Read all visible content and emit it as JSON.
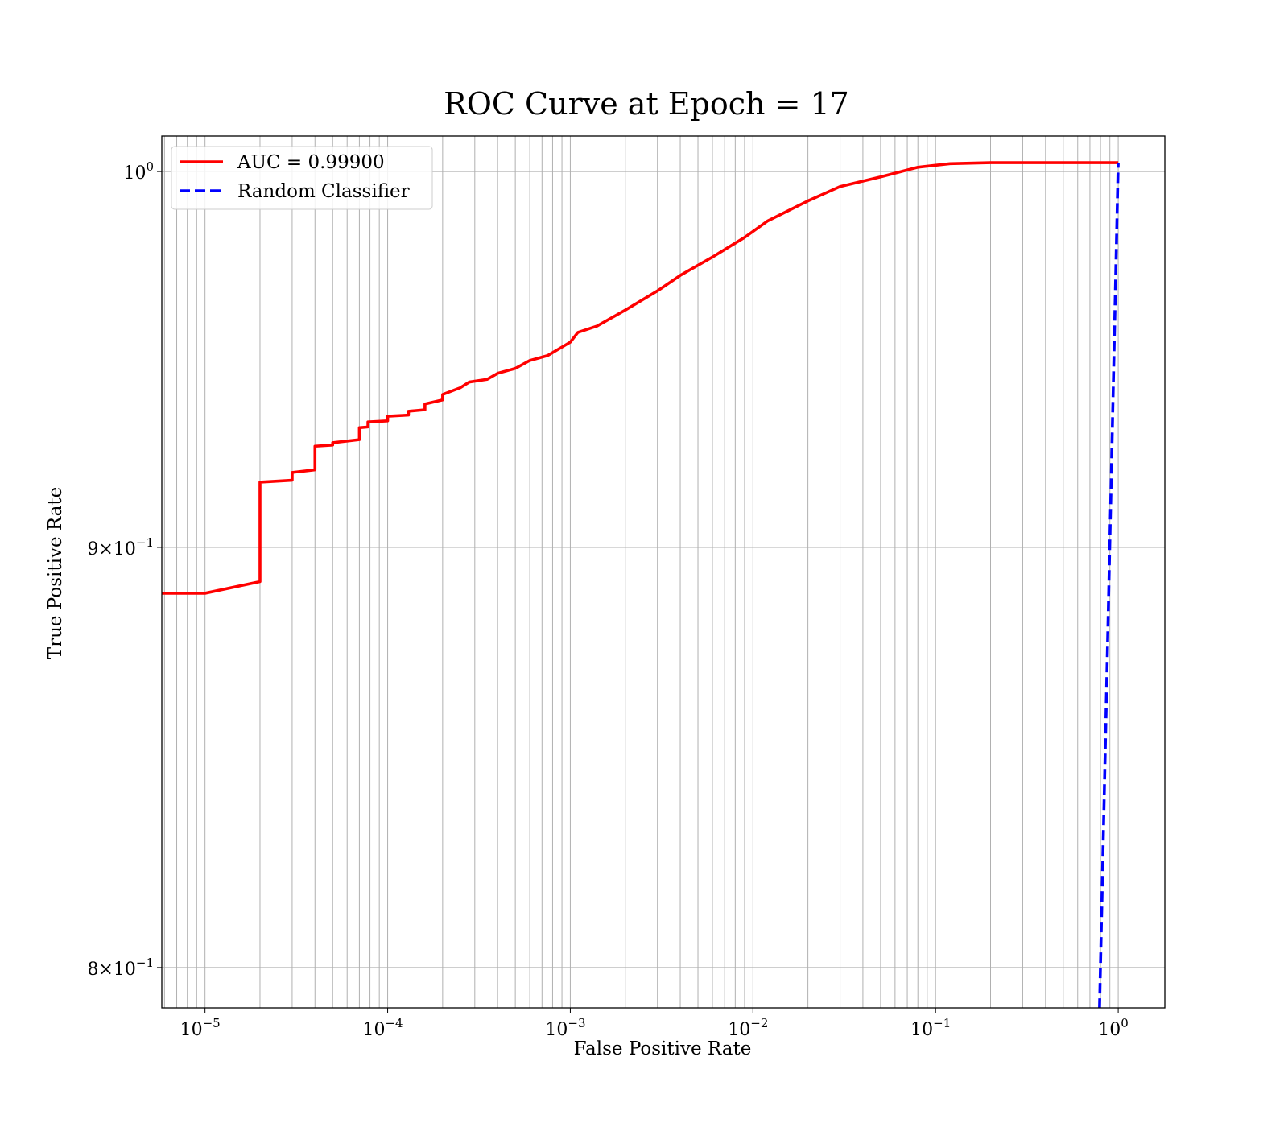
{
  "chart_data": {
    "type": "line",
    "title": "ROC Curve at Epoch = 17",
    "xlabel": "False Positive Rate",
    "ylabel": "True Positive Rate",
    "xscale": "log",
    "yscale": "log",
    "xlim": [
      5.8e-06,
      1.8
    ],
    "ylim": [
      0.791,
      1.01
    ],
    "grid": "both",
    "legend_position": "top-left",
    "x_ticks": [
      {
        "value": 1e-05,
        "base": "10",
        "exp": "−5"
      },
      {
        "value": 0.0001,
        "base": "10",
        "exp": "−4"
      },
      {
        "value": 0.001,
        "base": "10",
        "exp": "−3"
      },
      {
        "value": 0.01,
        "base": "10",
        "exp": "−2"
      },
      {
        "value": 0.1,
        "base": "10",
        "exp": "−1"
      },
      {
        "value": 1,
        "base": "10",
        "exp": "0"
      }
    ],
    "y_ticks": [
      {
        "value": 1.0,
        "mant": "",
        "base": "10",
        "exp": "0"
      },
      {
        "value": 0.9,
        "mant": "9×",
        "base": "10",
        "exp": "−1"
      },
      {
        "value": 0.8,
        "mant": "8×",
        "base": "10",
        "exp": "−1"
      }
    ],
    "series": [
      {
        "name": "AUC = 0.99900",
        "color": "#ff0000",
        "style": "solid",
        "points": [
          [
            5.8e-06,
            0.8885
          ],
          [
            1e-05,
            0.8885
          ],
          [
            2e-05,
            0.8914
          ],
          [
            2e-05,
            0.9166
          ],
          [
            3e-05,
            0.9171
          ],
          [
            3e-05,
            0.9191
          ],
          [
            4e-05,
            0.9198
          ],
          [
            4e-05,
            0.9259
          ],
          [
            5e-05,
            0.9262
          ],
          [
            5e-05,
            0.9268
          ],
          [
            7e-05,
            0.9276
          ],
          [
            7e-05,
            0.9307
          ],
          [
            7.8e-05,
            0.9309
          ],
          [
            7.8e-05,
            0.9322
          ],
          [
            0.0001,
            0.9325
          ],
          [
            0.0001,
            0.9337
          ],
          [
            0.00013,
            0.934
          ],
          [
            0.00013,
            0.935
          ],
          [
            0.00016,
            0.9354
          ],
          [
            0.00016,
            0.9369
          ],
          [
            0.0002,
            0.938
          ],
          [
            0.0002,
            0.9394
          ],
          [
            0.00025,
            0.9412
          ],
          [
            0.00028,
            0.9427
          ],
          [
            0.00035,
            0.9434
          ],
          [
            0.0004,
            0.945
          ],
          [
            0.0005,
            0.9463
          ],
          [
            0.0006,
            0.9484
          ],
          [
            0.00075,
            0.9497
          ],
          [
            0.001,
            0.9533
          ],
          [
            0.0011,
            0.9559
          ],
          [
            0.0014,
            0.9576
          ],
          [
            0.002,
            0.9619
          ],
          [
            0.003,
            0.9671
          ],
          [
            0.004,
            0.9713
          ],
          [
            0.006,
            0.9763
          ],
          [
            0.009,
            0.9817
          ],
          [
            0.012,
            0.9862
          ],
          [
            0.02,
            0.9918
          ],
          [
            0.03,
            0.9958
          ],
          [
            0.05,
            0.9985
          ],
          [
            0.08,
            1.0012
          ],
          [
            0.12,
            1.0022
          ],
          [
            0.2,
            1.0025
          ],
          [
            1.0,
            1.0025
          ]
        ]
      },
      {
        "name": "Random Classifier",
        "color": "#0000ff",
        "style": "dashed",
        "points": [
          [
            0.79,
            0.7908
          ],
          [
            1.0,
            1.0025
          ]
        ]
      }
    ]
  }
}
